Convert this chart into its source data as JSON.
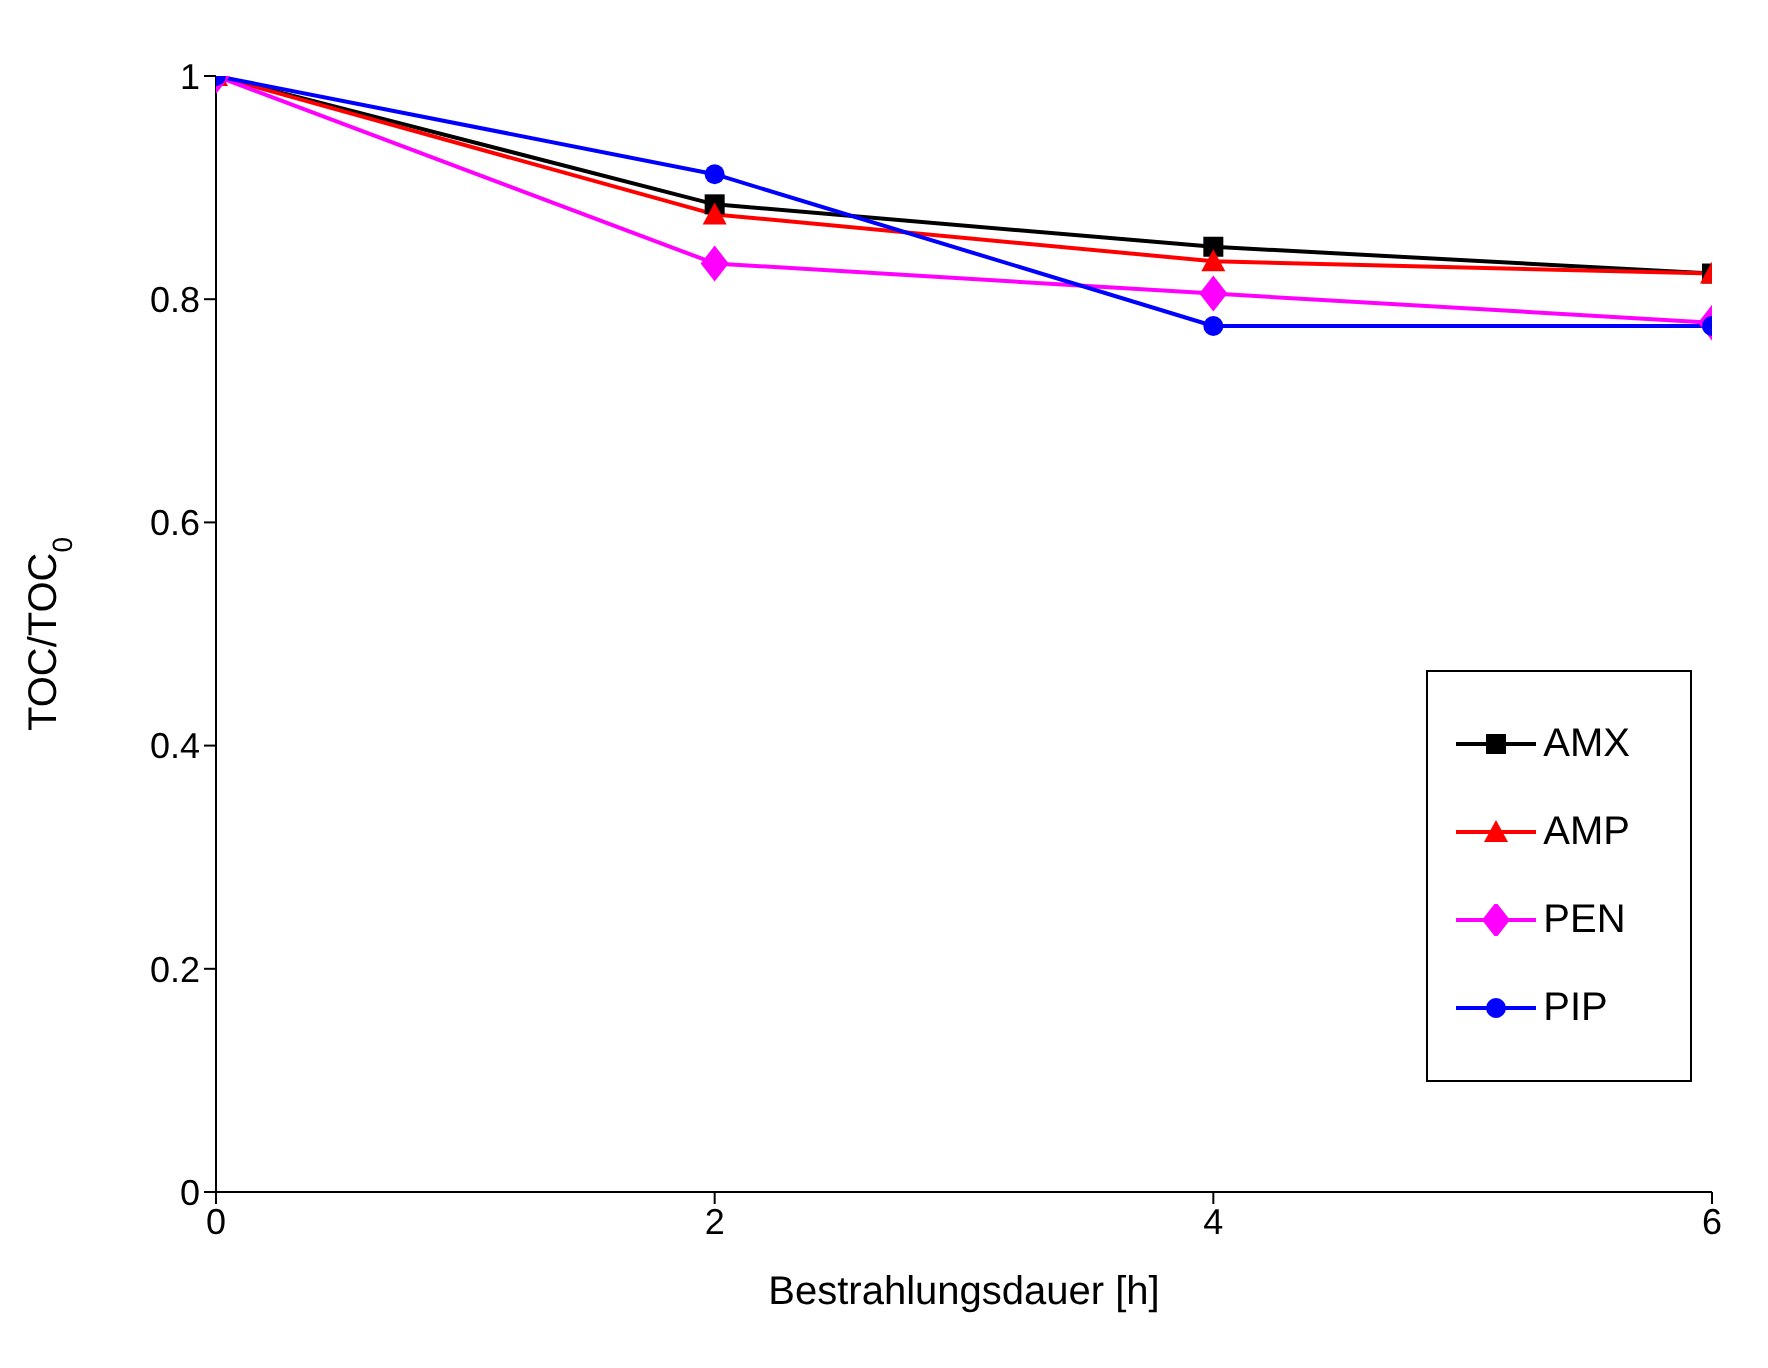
{
  "chart_data": {
    "type": "line",
    "xlabel": "Bestrahlungsdauer [h]",
    "ylabel": "TOC/TOC$_{0}$",
    "x": [
      0,
      2,
      4,
      6
    ],
    "series": [
      {
        "name": "AMX",
        "color": "#000000",
        "marker": "square",
        "values": [
          1,
          0.885,
          0.847,
          0.823
        ]
      },
      {
        "name": "AMP",
        "color": "#ff0000",
        "marker": "triangle",
        "values": [
          1,
          0.876,
          0.834,
          0.823
        ]
      },
      {
        "name": "PEN",
        "color": "#ff00ff",
        "marker": "diamond",
        "values": [
          1,
          0.832,
          0.805,
          0.779
        ]
      },
      {
        "name": "PIP",
        "color": "#0000ff",
        "marker": "circle",
        "values": [
          1,
          0.912,
          0.776,
          0.776
        ]
      }
    ],
    "xlim": [
      0,
      6
    ],
    "xticks": [
      0,
      2,
      4,
      6
    ],
    "ylim": [
      0,
      1
    ],
    "yticks": [
      0,
      0.2,
      0.4,
      0.6,
      0.8,
      1
    ],
    "grid": false,
    "legend": "bottom right",
    "line_style": "solid"
  }
}
